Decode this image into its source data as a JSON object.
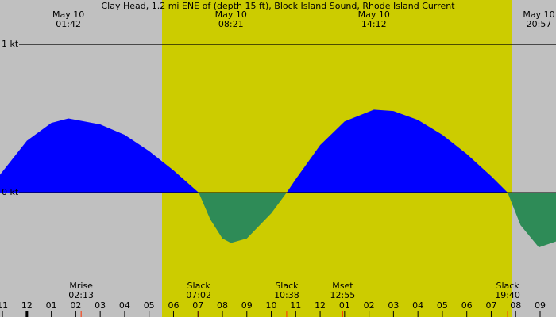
{
  "chart_data": {
    "type": "area",
    "title": "Clay Head, 1.2 mi ENE of (depth 15 ft), Block Island Sound, Rhode Island Current",
    "x": [
      -1.1,
      0,
      1,
      1.7,
      3,
      4,
      5,
      6,
      7.03,
      7.5,
      8,
      8.35,
      9,
      10,
      10.63,
      11,
      12,
      13,
      14.2,
      15,
      16,
      17,
      18,
      19,
      19.67,
      20.2,
      20.95,
      21.65
    ],
    "values": [
      0.12,
      0.35,
      0.47,
      0.5,
      0.46,
      0.39,
      0.28,
      0.15,
      0,
      -0.18,
      -0.31,
      -0.34,
      -0.31,
      -0.14,
      0,
      0.09,
      0.32,
      0.48,
      0.56,
      0.55,
      0.49,
      0.39,
      0.26,
      0.11,
      0,
      -0.22,
      -0.37,
      -0.33
    ],
    "flood_color": "#0000ff",
    "ebb_color": "#2e8b57",
    "background_color": "#c0c0c0",
    "daylight_color": "#cccc00",
    "daylight": [
      5.53,
      19.83
    ],
    "xlim": [
      -1.1,
      21.65
    ],
    "ylim": [
      -0.84,
      1.3
    ],
    "yticks": [
      {
        "value": 1,
        "label": "1 kt"
      },
      {
        "value": 0,
        "label": "0 kt"
      }
    ],
    "xticks": [
      {
        "value": -1,
        "label": "11"
      },
      {
        "value": 0,
        "label": "12"
      },
      {
        "value": 1,
        "label": "01"
      },
      {
        "value": 2,
        "label": "02"
      },
      {
        "value": 3,
        "label": "03"
      },
      {
        "value": 4,
        "label": "04"
      },
      {
        "value": 5,
        "label": "05"
      },
      {
        "value": 6,
        "label": "06"
      },
      {
        "value": 7,
        "label": "07"
      },
      {
        "value": 8,
        "label": "08"
      },
      {
        "value": 9,
        "label": "09"
      },
      {
        "value": 10,
        "label": "10"
      },
      {
        "value": 11,
        "label": "11"
      },
      {
        "value": 12,
        "label": "12"
      },
      {
        "value": 13,
        "label": "01"
      },
      {
        "value": 14,
        "label": "02"
      },
      {
        "value": 15,
        "label": "03"
      },
      {
        "value": 16,
        "label": "04"
      },
      {
        "value": 17,
        "label": "05"
      },
      {
        "value": 18,
        "label": "06"
      },
      {
        "value": 19,
        "label": "07"
      },
      {
        "value": 20,
        "label": "08"
      },
      {
        "value": 21,
        "label": "09"
      }
    ],
    "extremes": [
      {
        "date": "May 10",
        "time": "01:42",
        "x": 1.7
      },
      {
        "date": "May 10",
        "time": "08:21",
        "x": 8.35
      },
      {
        "date": "May 10",
        "time": "14:12",
        "x": 14.2
      },
      {
        "date": "May 10",
        "time": "20:57",
        "x": 20.95
      }
    ],
    "events": [
      {
        "label": "Mrise",
        "time": "02:13",
        "x": 2.22
      },
      {
        "label": "Slack",
        "time": "07:02",
        "x": 7.03
      },
      {
        "label": "Slack",
        "time": "10:38",
        "x": 10.63
      },
      {
        "label": "Mset",
        "time": "12:55",
        "x": 12.92
      },
      {
        "label": "Slack",
        "time": "19:40",
        "x": 19.67
      }
    ]
  }
}
